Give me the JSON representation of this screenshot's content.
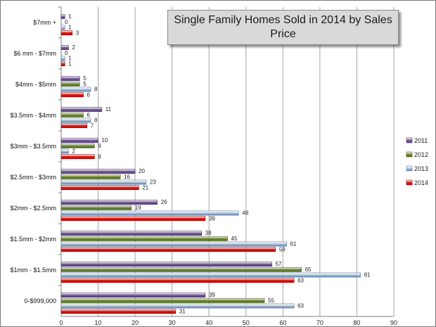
{
  "chart_data": {
    "type": "bar",
    "orientation": "horizontal",
    "title": "Single Family Homes Sold in 2014 by Sales Price",
    "categories": [
      "0-$999,000",
      "$1mm - $1.5mm",
      "$1.5mm - $2mm",
      "$2mm - $2.5mm",
      "$2.5mm - $3mm",
      "$3mm - $3.5mm",
      "$3.5mm - $4mm",
      "$4mm - $5mm",
      "$6 mm - $7mm",
      "$7mm +"
    ],
    "series": [
      {
        "name": "2011",
        "color": "#8064a2",
        "values": [
          39,
          57,
          38,
          26,
          20,
          10,
          11,
          5,
          2,
          1
        ]
      },
      {
        "name": "2012",
        "color": "#77933c",
        "values": [
          55,
          65,
          45,
          19,
          16,
          9,
          6,
          5,
          0,
          0
        ]
      },
      {
        "name": "2013",
        "color": "#b9cde5",
        "values": [
          63,
          81,
          61,
          48,
          23,
          2,
          8,
          8,
          1,
          1
        ]
      },
      {
        "name": "2014",
        "color": "#e8201d",
        "values": [
          31,
          63,
          58,
          39,
          21,
          9,
          7,
          6,
          1,
          3
        ]
      }
    ],
    "xlim": [
      0,
      90
    ],
    "xticks": [
      0,
      10,
      20,
      30,
      40,
      50,
      60,
      70,
      80,
      90
    ],
    "xlabel": "",
    "ylabel": "",
    "grid": "vertical",
    "legend": "right"
  }
}
